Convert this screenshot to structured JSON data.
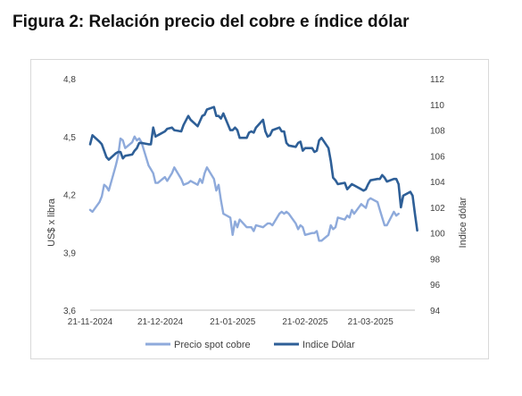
{
  "figure_title": "Figura 2: Relación precio del cobre e índice dólar",
  "chart_data": {
    "type": "line",
    "title": "Figura 2: Relación precio del cobre e índice dólar",
    "x_tick_labels": [
      "21-11-2024",
      "21-12-2024",
      "21-01-2025",
      "21-02-2025",
      "21-03-2025"
    ],
    "x_start": "2024-11-21",
    "x_end": "2025-04-09",
    "ylabel_left": "US$ x libra",
    "ylabel_right": "Indice dólar",
    "ylim_left": [
      3.6,
      4.8
    ],
    "yticks_left": [
      "4,8",
      "4,5",
      "4,2",
      "3,9",
      "3,6"
    ],
    "ylim_right": [
      94,
      112
    ],
    "yticks_right": [
      "112",
      "110",
      "108",
      "106",
      "104",
      "102",
      "100",
      "98",
      "96",
      "94"
    ],
    "grid": false,
    "legend_position": "bottom",
    "series": [
      {
        "name": "Precio spot cobre",
        "axis": "left",
        "color": "#8eaadb",
        "points": [
          [
            "2024-11-21",
            4.12
          ],
          [
            "2024-11-22",
            4.11
          ],
          [
            "2024-11-25",
            4.16
          ],
          [
            "2024-11-26",
            4.19
          ],
          [
            "2024-11-27",
            4.25
          ],
          [
            "2024-11-28",
            4.24
          ],
          [
            "2024-11-29",
            4.22
          ],
          [
            "2024-12-02",
            4.35
          ],
          [
            "2024-12-03",
            4.4
          ],
          [
            "2024-12-04",
            4.49
          ],
          [
            "2024-12-05",
            4.48
          ],
          [
            "2024-12-06",
            4.44
          ],
          [
            "2024-12-09",
            4.47
          ],
          [
            "2024-12-10",
            4.5
          ],
          [
            "2024-12-11",
            4.48
          ],
          [
            "2024-12-12",
            4.49
          ],
          [
            "2024-12-13",
            4.47
          ],
          [
            "2024-12-16",
            4.35
          ],
          [
            "2024-12-17",
            4.33
          ],
          [
            "2024-12-18",
            4.31
          ],
          [
            "2024-12-19",
            4.26
          ],
          [
            "2024-12-20",
            4.26
          ],
          [
            "2024-12-23",
            4.29
          ],
          [
            "2024-12-24",
            4.27
          ],
          [
            "2024-12-26",
            4.31
          ],
          [
            "2024-12-27",
            4.34
          ],
          [
            "2024-12-30",
            4.28
          ],
          [
            "2024-12-31",
            4.25
          ],
          [
            "2025-01-02",
            4.26
          ],
          [
            "2025-01-03",
            4.27
          ],
          [
            "2025-01-06",
            4.25
          ],
          [
            "2025-01-07",
            4.28
          ],
          [
            "2025-01-08",
            4.26
          ],
          [
            "2025-01-09",
            4.31
          ],
          [
            "2025-01-10",
            4.34
          ],
          [
            "2025-01-13",
            4.28
          ],
          [
            "2025-01-14",
            4.22
          ],
          [
            "2025-01-15",
            4.25
          ],
          [
            "2025-01-16",
            4.17
          ],
          [
            "2025-01-17",
            4.1
          ],
          [
            "2025-01-20",
            4.08
          ],
          [
            "2025-01-21",
            3.99
          ],
          [
            "2025-01-22",
            4.06
          ],
          [
            "2025-01-23",
            4.03
          ],
          [
            "2025-01-24",
            4.07
          ],
          [
            "2025-01-27",
            4.03
          ],
          [
            "2025-01-28",
            4.03
          ],
          [
            "2025-01-29",
            4.03
          ],
          [
            "2025-01-30",
            4.01
          ],
          [
            "2025-01-31",
            4.04
          ],
          [
            "2025-02-03",
            4.03
          ],
          [
            "2025-02-04",
            4.04
          ],
          [
            "2025-02-05",
            4.05
          ],
          [
            "2025-02-06",
            4.05
          ],
          [
            "2025-02-07",
            4.04
          ],
          [
            "2025-02-10",
            4.1
          ],
          [
            "2025-02-11",
            4.11
          ],
          [
            "2025-02-12",
            4.1
          ],
          [
            "2025-02-13",
            4.11
          ],
          [
            "2025-02-14",
            4.1
          ],
          [
            "2025-02-17",
            4.05
          ],
          [
            "2025-02-18",
            4.02
          ],
          [
            "2025-02-19",
            4.04
          ],
          [
            "2025-02-20",
            4.03
          ],
          [
            "2025-02-21",
            3.99
          ],
          [
            "2025-02-24",
            4.0
          ],
          [
            "2025-02-25",
            4.0
          ],
          [
            "2025-02-26",
            4.01
          ],
          [
            "2025-02-27",
            3.96
          ],
          [
            "2025-02-28",
            3.96
          ],
          [
            "2025-03-03",
            3.99
          ],
          [
            "2025-03-04",
            4.04
          ],
          [
            "2025-03-05",
            4.02
          ],
          [
            "2025-03-06",
            4.03
          ],
          [
            "2025-03-07",
            4.08
          ],
          [
            "2025-03-10",
            4.07
          ],
          [
            "2025-03-11",
            4.09
          ],
          [
            "2025-03-12",
            4.08
          ],
          [
            "2025-03-13",
            4.12
          ],
          [
            "2025-03-14",
            4.1
          ],
          [
            "2025-03-17",
            4.15
          ],
          [
            "2025-03-18",
            4.14
          ],
          [
            "2025-03-19",
            4.13
          ],
          [
            "2025-03-20",
            4.17
          ],
          [
            "2025-03-21",
            4.18
          ],
          [
            "2025-03-24",
            4.16
          ],
          [
            "2025-03-25",
            4.12
          ],
          [
            "2025-03-26",
            4.08
          ],
          [
            "2025-03-27",
            4.04
          ],
          [
            "2025-03-28",
            4.04
          ],
          [
            "2025-03-31",
            4.11
          ],
          [
            "2025-04-01",
            4.09
          ],
          [
            "2025-04-02",
            4.1
          ]
        ]
      },
      {
        "name": "Indice Dólar",
        "axis": "right",
        "color": "#2e5f97",
        "points": [
          [
            "2024-11-21",
            106.9
          ],
          [
            "2024-11-22",
            107.6
          ],
          [
            "2024-11-25",
            107.1
          ],
          [
            "2024-11-26",
            106.9
          ],
          [
            "2024-11-27",
            106.4
          ],
          [
            "2024-11-28",
            105.9
          ],
          [
            "2024-11-29",
            105.7
          ],
          [
            "2024-12-02",
            106.2
          ],
          [
            "2024-12-03",
            106.3
          ],
          [
            "2024-12-04",
            106.3
          ],
          [
            "2024-12-05",
            105.8
          ],
          [
            "2024-12-06",
            106.0
          ],
          [
            "2024-12-09",
            106.1
          ],
          [
            "2024-12-10",
            106.4
          ],
          [
            "2024-12-11",
            106.6
          ],
          [
            "2024-12-12",
            107.0
          ],
          [
            "2024-12-13",
            107.0
          ],
          [
            "2024-12-16",
            106.9
          ],
          [
            "2024-12-17",
            106.9
          ],
          [
            "2024-12-18",
            108.2
          ],
          [
            "2024-12-19",
            107.5
          ],
          [
            "2024-12-20",
            107.6
          ],
          [
            "2024-12-23",
            107.9
          ],
          [
            "2024-12-24",
            108.1
          ],
          [
            "2024-12-26",
            108.2
          ],
          [
            "2024-12-27",
            108.0
          ],
          [
            "2024-12-30",
            107.9
          ],
          [
            "2024-12-31",
            108.4
          ],
          [
            "2025-01-02",
            109.1
          ],
          [
            "2025-01-03",
            108.8
          ],
          [
            "2025-01-06",
            108.3
          ],
          [
            "2025-01-07",
            108.7
          ],
          [
            "2025-01-08",
            109.1
          ],
          [
            "2025-01-09",
            109.2
          ],
          [
            "2025-01-10",
            109.6
          ],
          [
            "2025-01-13",
            109.8
          ],
          [
            "2025-01-14",
            109.1
          ],
          [
            "2025-01-15",
            109.1
          ],
          [
            "2025-01-16",
            108.9
          ],
          [
            "2025-01-17",
            109.3
          ],
          [
            "2025-01-20",
            108.0
          ],
          [
            "2025-01-21",
            108.0
          ],
          [
            "2025-01-22",
            108.2
          ],
          [
            "2025-01-23",
            108.0
          ],
          [
            "2025-01-24",
            107.4
          ],
          [
            "2025-01-27",
            107.4
          ],
          [
            "2025-01-28",
            107.8
          ],
          [
            "2025-01-29",
            107.9
          ],
          [
            "2025-01-30",
            107.8
          ],
          [
            "2025-01-31",
            108.2
          ],
          [
            "2025-02-03",
            108.8
          ],
          [
            "2025-02-04",
            107.9
          ],
          [
            "2025-02-05",
            107.5
          ],
          [
            "2025-02-06",
            107.6
          ],
          [
            "2025-02-07",
            108.0
          ],
          [
            "2025-02-10",
            108.2
          ],
          [
            "2025-02-11",
            107.9
          ],
          [
            "2025-02-12",
            107.9
          ],
          [
            "2025-02-13",
            107.0
          ],
          [
            "2025-02-14",
            106.8
          ],
          [
            "2025-02-17",
            106.7
          ],
          [
            "2025-02-18",
            107.0
          ],
          [
            "2025-02-19",
            107.1
          ],
          [
            "2025-02-20",
            106.4
          ],
          [
            "2025-02-21",
            106.6
          ],
          [
            "2025-02-24",
            106.6
          ],
          [
            "2025-02-25",
            106.3
          ],
          [
            "2025-02-26",
            106.4
          ],
          [
            "2025-02-27",
            107.2
          ],
          [
            "2025-02-28",
            107.4
          ],
          [
            "2025-03-03",
            106.6
          ],
          [
            "2025-03-04",
            105.6
          ],
          [
            "2025-03-05",
            104.3
          ],
          [
            "2025-03-06",
            104.1
          ],
          [
            "2025-03-07",
            103.8
          ],
          [
            "2025-03-10",
            103.9
          ],
          [
            "2025-03-11",
            103.4
          ],
          [
            "2025-03-12",
            103.6
          ],
          [
            "2025-03-13",
            103.8
          ],
          [
            "2025-03-14",
            103.7
          ],
          [
            "2025-03-17",
            103.4
          ],
          [
            "2025-03-18",
            103.3
          ],
          [
            "2025-03-19",
            103.4
          ],
          [
            "2025-03-20",
            103.8
          ],
          [
            "2025-03-21",
            104.1
          ],
          [
            "2025-03-24",
            104.2
          ],
          [
            "2025-03-25",
            104.2
          ],
          [
            "2025-03-26",
            104.5
          ],
          [
            "2025-03-27",
            104.3
          ],
          [
            "2025-03-28",
            104.0
          ],
          [
            "2025-03-31",
            104.2
          ],
          [
            "2025-04-01",
            104.2
          ],
          [
            "2025-04-02",
            103.8
          ],
          [
            "2025-04-03",
            102.0
          ],
          [
            "2025-04-04",
            102.9
          ],
          [
            "2025-04-07",
            103.2
          ],
          [
            "2025-04-08",
            102.9
          ],
          [
            "2025-04-09",
            101.5
          ],
          [
            "2025-04-10",
            100.2
          ]
        ]
      }
    ]
  }
}
